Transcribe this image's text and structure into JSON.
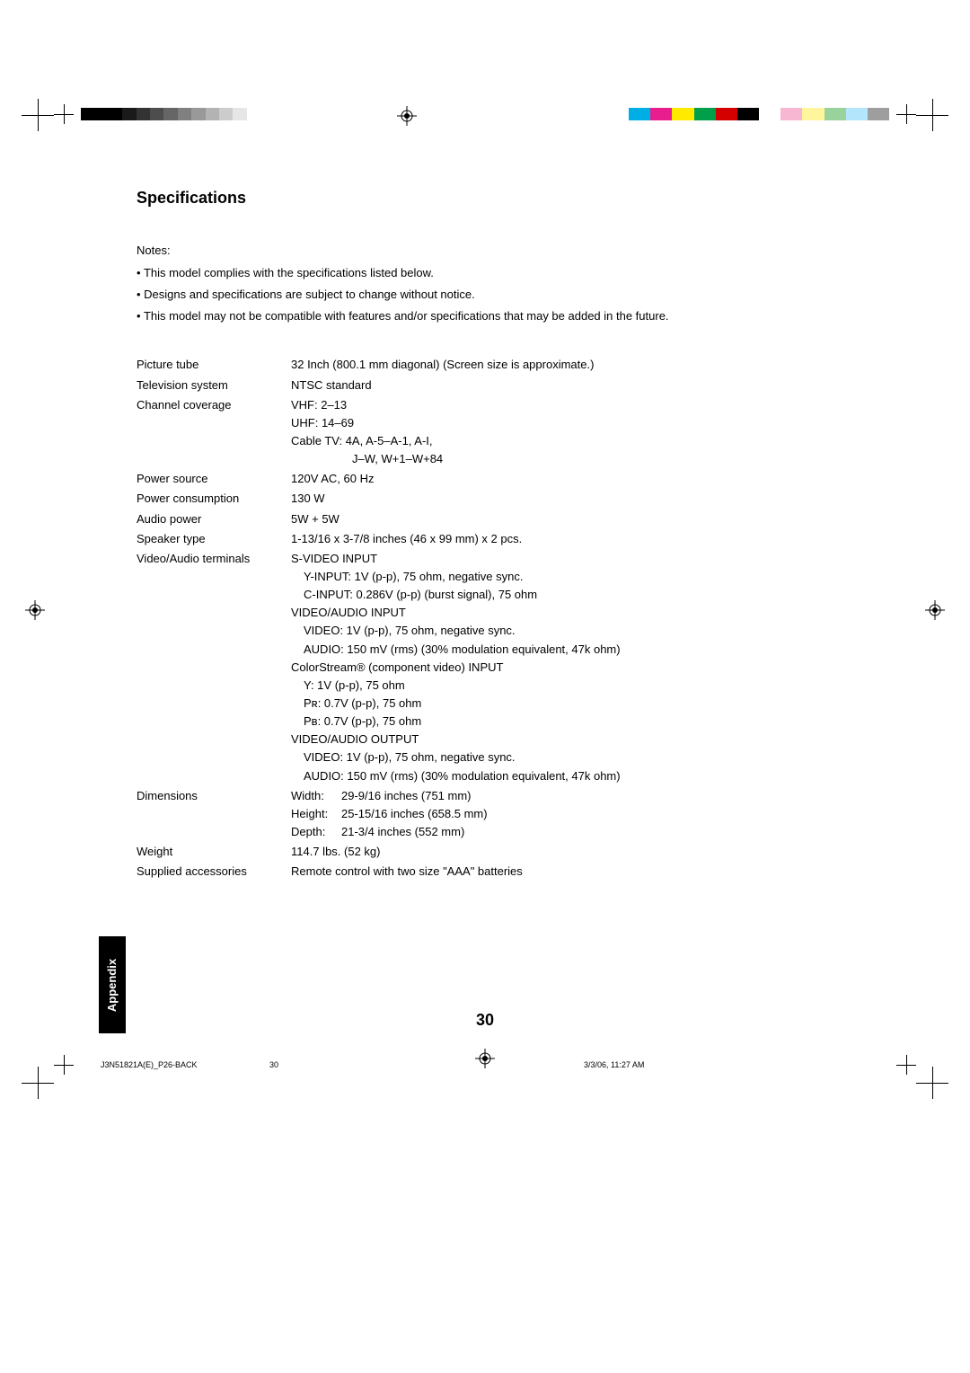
{
  "heading": "Specifications",
  "notes_label": "Notes:",
  "notes": [
    "This model complies with the specifications listed below.",
    "Designs and specifications are subject to change without notice.",
    "This model may not be compatible with features and/or specifications that may be added in the future."
  ],
  "specs": {
    "picture_tube": {
      "label": "Picture tube",
      "value": "32 Inch (800.1 mm diagonal) (Screen size is approximate.)"
    },
    "tv_system": {
      "label": "Television system",
      "value": "NTSC standard"
    },
    "channel_coverage": {
      "label": "Channel coverage",
      "lines": [
        "VHF: 2–13",
        "UHF: 14–69",
        "Cable TV: 4A, A-5–A-1, A-I,"
      ],
      "cable_line2": "J–W, W+1–W+84"
    },
    "power_source": {
      "label": "Power source",
      "value": "120V AC, 60 Hz"
    },
    "power_consumption": {
      "label": "Power consumption",
      "value": "130 W"
    },
    "audio_power": {
      "label": "Audio power",
      "value": "5W + 5W"
    },
    "speaker_type": {
      "label": "Speaker type",
      "value": "1-13/16 x 3-7/8 inches (46 x 99 mm) x 2 pcs."
    },
    "video_audio_terminals": {
      "label": "Video/Audio terminals",
      "svideo_header": "S-VIDEO INPUT",
      "svideo_y": "Y-INPUT: 1V (p-p), 75 ohm, negative sync.",
      "svideo_c": "C-INPUT: 0.286V (p-p) (burst signal), 75 ohm",
      "va_input_header": "VIDEO/AUDIO INPUT",
      "va_input_video": "VIDEO: 1V (p-p), 75 ohm, negative sync.",
      "va_input_audio": "AUDIO: 150 mV (rms) (30% modulation equivalent, 47k ohm)",
      "cs_header": "ColorStream® (component video) INPUT",
      "cs_y": "Y:   1V (p-p), 75 ohm",
      "cs_pr": "Pʀ:  0.7V (p-p), 75 ohm",
      "cs_pb": "Pʙ:  0.7V (p-p), 75 ohm",
      "va_output_header": "VIDEO/AUDIO OUTPUT",
      "va_output_video": "VIDEO: 1V (p-p), 75 ohm, negative sync.",
      "va_output_audio": "AUDIO: 150 mV (rms) (30% modulation equivalent, 47k ohm)"
    },
    "dimensions": {
      "label": "Dimensions",
      "width": {
        "label": "Width:",
        "value": "29-9/16 inches (751 mm)"
      },
      "height": {
        "label": "Height:",
        "value": "25-15/16 inches (658.5 mm)"
      },
      "depth": {
        "label": "Depth:",
        "value": "21-3/4 inches (552 mm)"
      }
    },
    "weight": {
      "label": "Weight",
      "value": "114.7 lbs. (52 kg)"
    },
    "accessories": {
      "label": "Supplied accessories",
      "value": "Remote control with two size \"AAA\" batteries"
    }
  },
  "side_tab": "Appendix",
  "page_number": "30",
  "footer": {
    "file": "J3N51821A(E)_P26-BACK",
    "page": "30",
    "datetime": "3/3/06, 11:27 AM"
  },
  "calibration": {
    "gray_bar": [
      "#000000",
      "#000000",
      "#000000",
      "#1a1a1a",
      "#333333",
      "#4d4d4d",
      "#666666",
      "#808080",
      "#999999",
      "#b3b3b3",
      "#cccccc",
      "#e6e6e6",
      "#ffffff"
    ],
    "color_bar": [
      "#00aee6",
      "#e91e8e",
      "#ffea00",
      "#00a04a",
      "#d40000",
      "#000000",
      "#ffffff",
      "#f7b6d2",
      "#fff59d",
      "#9ad29c",
      "#b3e5fc",
      "#9e9e9e"
    ]
  },
  "styling": {
    "page_bg": "#ffffff",
    "text_color": "#000000",
    "title_fontsize_pt": 14,
    "body_fontsize_pt": 10,
    "font_family": "Arial, Helvetica, sans-serif",
    "tab_bg": "#000000",
    "tab_fg": "#ffffff"
  }
}
